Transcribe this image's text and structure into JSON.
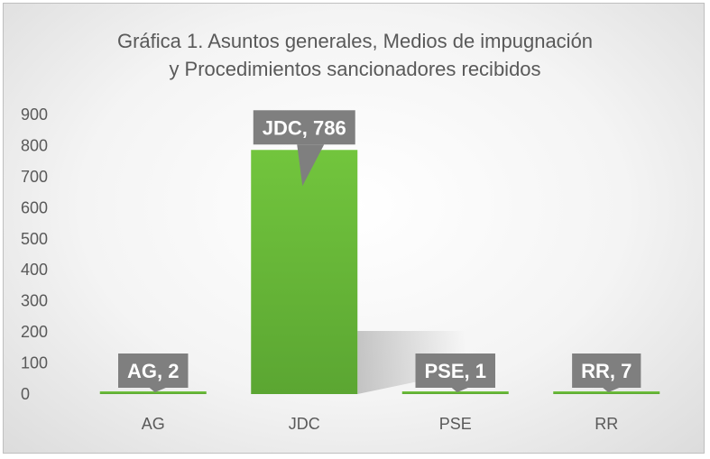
{
  "chart_data": {
    "type": "bar",
    "title": "Gráfica 1. Asuntos generales, Medios de impugnación y Procedimientos sancionadores recibidos",
    "title_lines": [
      "Gráfica 1. Asuntos generales, Medios de impugnación",
      "y Procedimientos sancionadores recibidos"
    ],
    "categories": [
      "AG",
      "JDC",
      "PSE",
      "RR"
    ],
    "values": [
      2,
      786,
      1,
      7
    ],
    "data_labels": [
      "AG, 2",
      "JDC, 786",
      "PSE, 1",
      "RR, 7"
    ],
    "y_ticks": [
      "0",
      "100",
      "200",
      "300",
      "400",
      "500",
      "600",
      "700",
      "800",
      "900"
    ],
    "ylim": [
      0,
      900
    ],
    "xlabel": "",
    "ylabel": "",
    "grid": false,
    "legend": "none",
    "colors": {
      "bar": "#6cbf3b",
      "bar_dark": "#56a12c",
      "label_box": "#7f7f7f"
    }
  }
}
